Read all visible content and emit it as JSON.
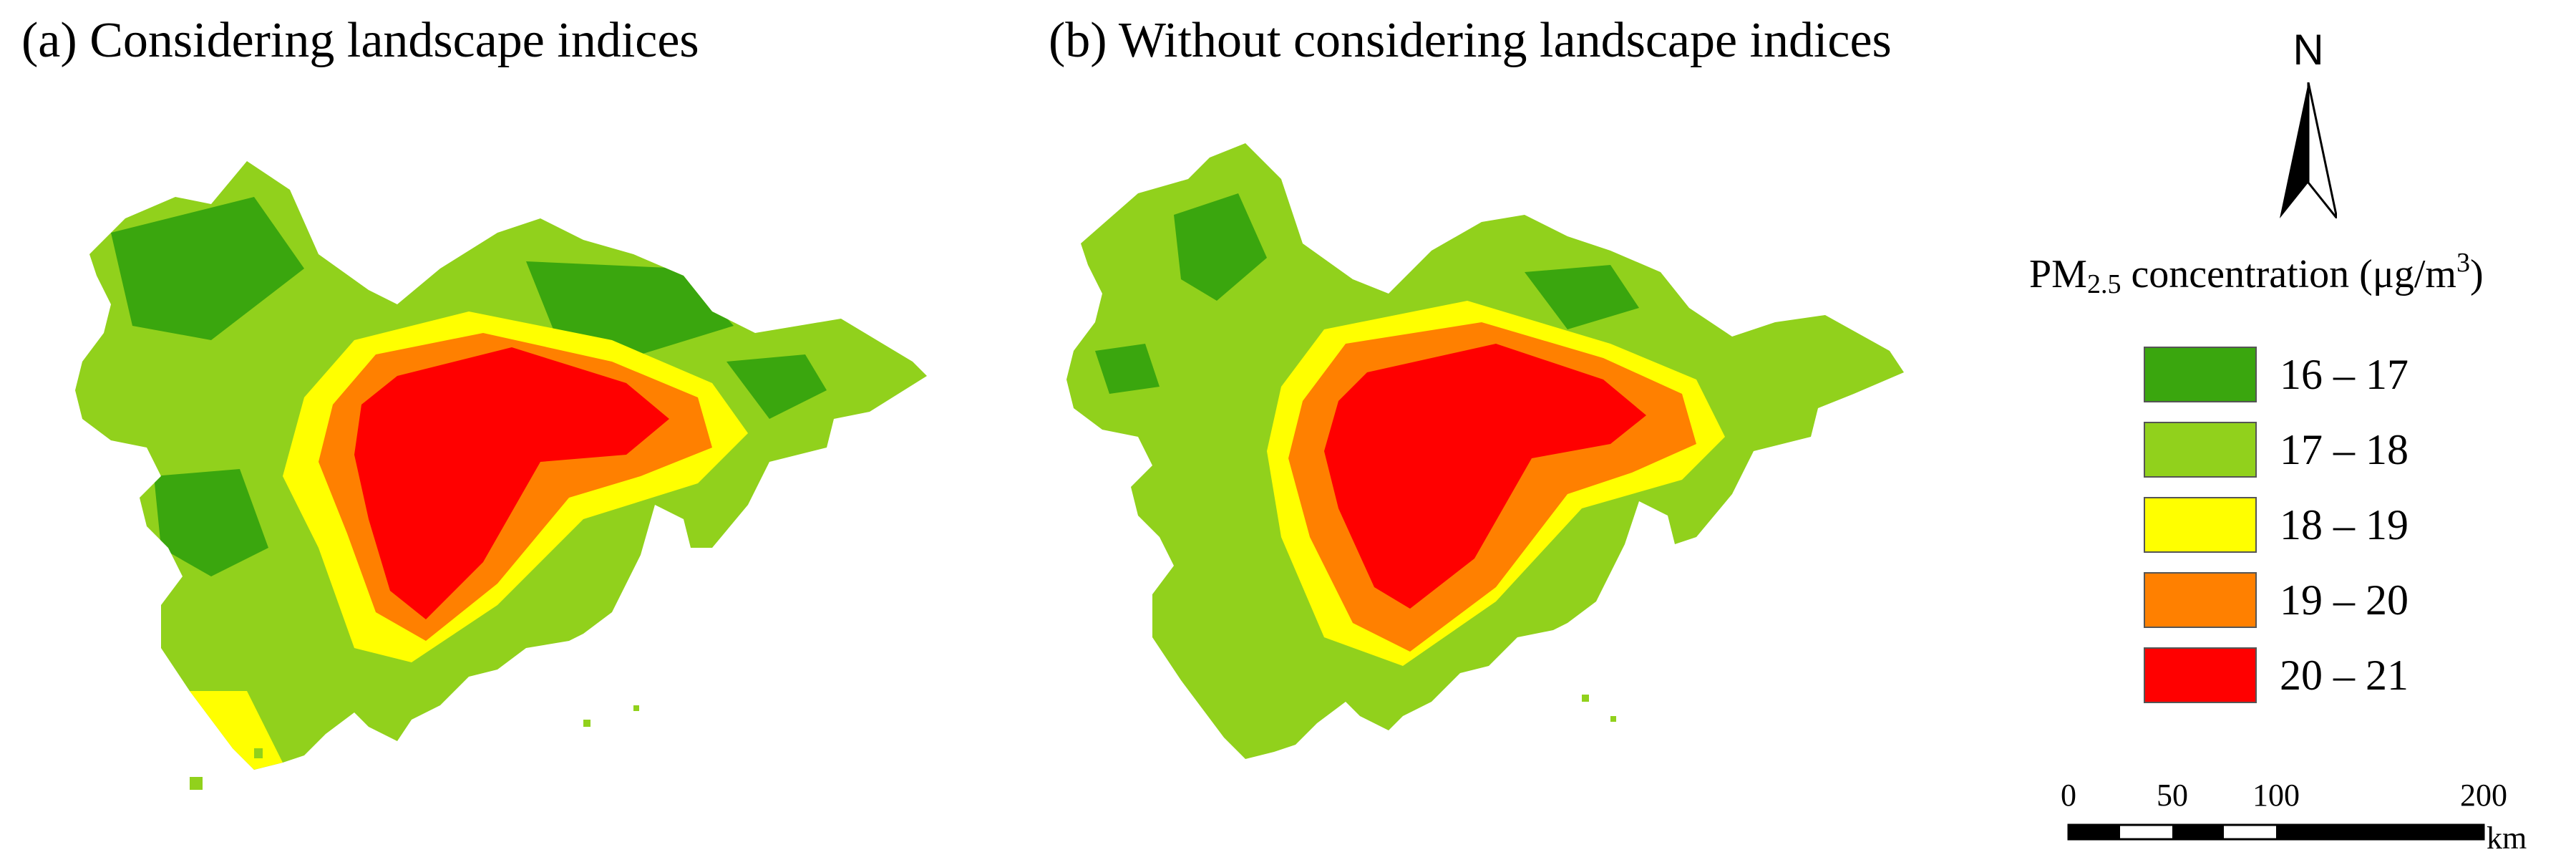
{
  "titles": {
    "a": "(a) Considering landscape indices",
    "b": "(b) Without considering landscape indices"
  },
  "north_arrow": {
    "label": "N"
  },
  "legend": {
    "title_prefix": "PM",
    "title_sub": "2.5",
    "title_mid": " concentration (μg/m",
    "title_sup": "3",
    "title_suffix": ")",
    "items": [
      {
        "label": "16 – 17",
        "color": "#3aa60e"
      },
      {
        "label": "17 – 18",
        "color": "#91d11c"
      },
      {
        "label": "18 – 19",
        "color": "#ffff00"
      },
      {
        "label": "19 – 20",
        "color": "#ff8000"
      },
      {
        "label": "20 – 21",
        "color": "#ff0000"
      }
    ]
  },
  "scale_bar": {
    "ticks": [
      "0",
      "50",
      "100",
      "200"
    ],
    "unit": "km"
  }
}
